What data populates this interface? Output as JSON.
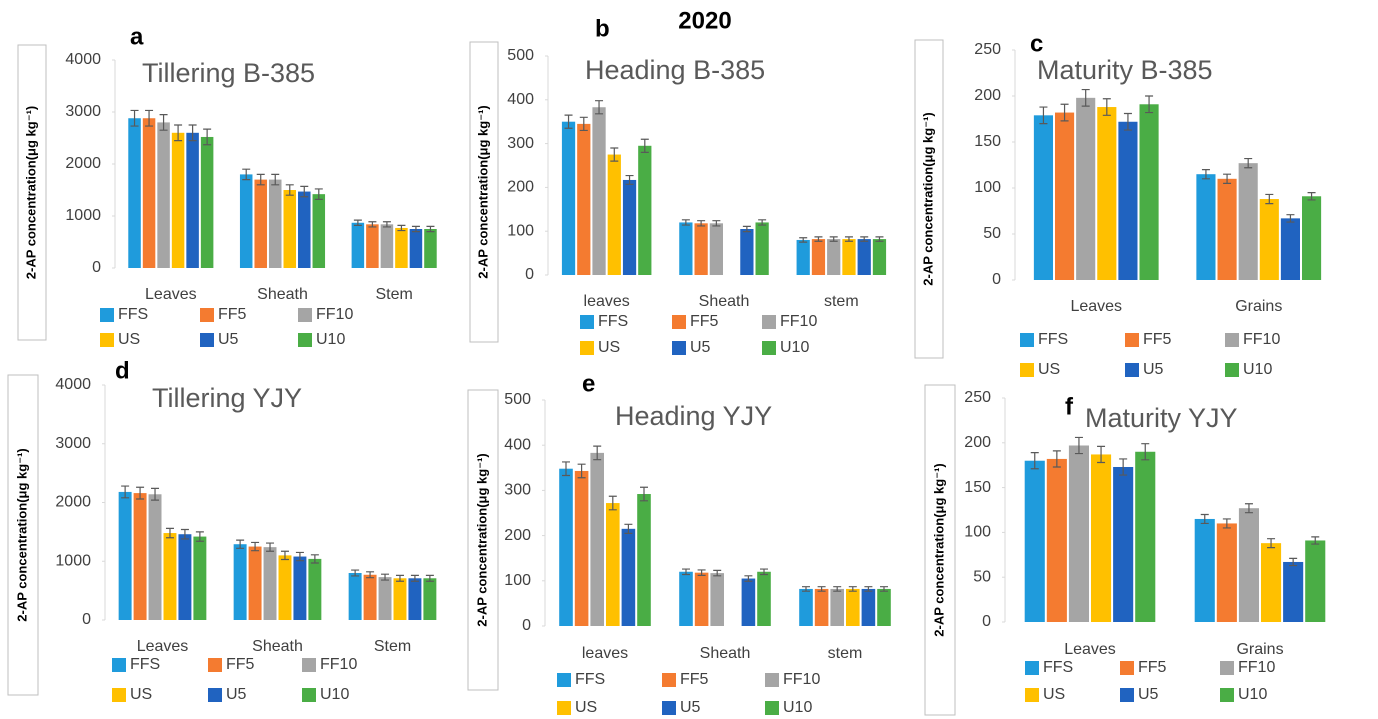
{
  "title": "2020",
  "chart_data": [
    {
      "type": "bar",
      "panel": "a",
      "title": "Tillering B-385",
      "ylabel": "2-AP concentration(μg kg⁻¹)",
      "categories": [
        "Leaves",
        "Sheath",
        "Stem"
      ],
      "ylim": [
        0,
        4000
      ],
      "yticks": [
        0,
        1000,
        2000,
        3000,
        4000
      ],
      "series": [
        {
          "name": "FFS",
          "color": "#1f9bdc",
          "values": [
            2880,
            1800,
            870
          ],
          "errors": [
            150,
            100,
            50
          ]
        },
        {
          "name": "FF5",
          "color": "#f47b30",
          "values": [
            2880,
            1700,
            840
          ],
          "errors": [
            150,
            100,
            50
          ]
        },
        {
          "name": "FF10",
          "color": "#a5a5a5",
          "values": [
            2800,
            1700,
            840
          ],
          "errors": [
            150,
            100,
            50
          ]
        },
        {
          "name": "US",
          "color": "#ffc000",
          "values": [
            2600,
            1500,
            770
          ],
          "errors": [
            150,
            100,
            50
          ]
        },
        {
          "name": "U5",
          "color": "#2063c0",
          "values": [
            2600,
            1470,
            750
          ],
          "errors": [
            150,
            100,
            50
          ]
        },
        {
          "name": "U10",
          "color": "#4aad45",
          "values": [
            2520,
            1420,
            750
          ],
          "errors": [
            150,
            100,
            50
          ]
        }
      ]
    },
    {
      "type": "bar",
      "panel": "b",
      "title": "Heading B-385",
      "ylabel": "2-AP concentration(μg kg⁻¹)",
      "categories": [
        "leaves",
        "Sheath",
        "stem"
      ],
      "ylim": [
        0,
        500
      ],
      "yticks": [
        0,
        100,
        200,
        300,
        400,
        500
      ],
      "series": [
        {
          "name": "FFS",
          "color": "#1f9bdc",
          "values": [
            350,
            120,
            80
          ],
          "errors": [
            15,
            6,
            5
          ]
        },
        {
          "name": "FF5",
          "color": "#f47b30",
          "values": [
            345,
            118,
            82
          ],
          "errors": [
            15,
            6,
            5
          ]
        },
        {
          "name": "FF10",
          "color": "#a5a5a5",
          "values": [
            383,
            118,
            82
          ],
          "errors": [
            15,
            6,
            5
          ]
        },
        {
          "name": "US",
          "color": "#ffc000",
          "values": [
            275,
            null,
            82
          ],
          "errors": [
            15,
            null,
            5
          ]
        },
        {
          "name": "U5",
          "color": "#2063c0",
          "values": [
            217,
            105,
            82
          ],
          "errors": [
            10,
            6,
            5
          ]
        },
        {
          "name": "U10",
          "color": "#4aad45",
          "values": [
            295,
            120,
            82
          ],
          "errors": [
            15,
            6,
            5
          ]
        }
      ]
    },
    {
      "type": "bar",
      "panel": "c",
      "title": "Maturity B-385",
      "ylabel": "2-AP concentration(μg kg⁻¹)",
      "categories": [
        "Leaves",
        "Grains"
      ],
      "ylim": [
        0,
        250
      ],
      "yticks": [
        0,
        50,
        100,
        150,
        200,
        250
      ],
      "series": [
        {
          "name": "FFS",
          "color": "#1f9bdc",
          "values": [
            179,
            115
          ],
          "errors": [
            9,
            5
          ]
        },
        {
          "name": "FF5",
          "color": "#f47b30",
          "values": [
            182,
            110
          ],
          "errors": [
            9,
            5
          ]
        },
        {
          "name": "FF10",
          "color": "#a5a5a5",
          "values": [
            198,
            127
          ],
          "errors": [
            9,
            5
          ]
        },
        {
          "name": "US",
          "color": "#ffc000",
          "values": [
            188,
            88
          ],
          "errors": [
            9,
            5
          ]
        },
        {
          "name": "U5",
          "color": "#2063c0",
          "values": [
            172,
            67
          ],
          "errors": [
            9,
            4
          ]
        },
        {
          "name": "U10",
          "color": "#4aad45",
          "values": [
            191,
            91
          ],
          "errors": [
            9,
            4
          ]
        }
      ]
    },
    {
      "type": "bar",
      "panel": "d",
      "title": "Tillering  YJY",
      "ylabel": "2-AP concentration(μg kg⁻¹)",
      "categories": [
        "Leaves",
        "Sheath",
        "Stem"
      ],
      "ylim": [
        0,
        4000
      ],
      "yticks": [
        0,
        1000,
        2000,
        3000,
        4000
      ],
      "series": [
        {
          "name": "FFS",
          "color": "#1f9bdc",
          "values": [
            2180,
            1290,
            800
          ],
          "errors": [
            100,
            70,
            50
          ]
        },
        {
          "name": "FF5",
          "color": "#f47b30",
          "values": [
            2160,
            1250,
            770
          ],
          "errors": [
            100,
            70,
            50
          ]
        },
        {
          "name": "FF10",
          "color": "#a5a5a5",
          "values": [
            2140,
            1240,
            730
          ],
          "errors": [
            100,
            70,
            50
          ]
        },
        {
          "name": "US",
          "color": "#ffc000",
          "values": [
            1480,
            1100,
            710
          ],
          "errors": [
            80,
            70,
            50
          ]
        },
        {
          "name": "U5",
          "color": "#2063c0",
          "values": [
            1460,
            1080,
            710
          ],
          "errors": [
            80,
            70,
            50
          ]
        },
        {
          "name": "U10",
          "color": "#4aad45",
          "values": [
            1420,
            1040,
            710
          ],
          "errors": [
            80,
            70,
            50
          ]
        }
      ]
    },
    {
      "type": "bar",
      "panel": "e",
      "title": "Heading YJY",
      "ylabel": "2-AP concentration(μg kg⁻¹)",
      "categories": [
        "leaves",
        "Sheath",
        "stem"
      ],
      "ylim": [
        0,
        500
      ],
      "yticks": [
        0,
        100,
        200,
        300,
        400,
        500
      ],
      "series": [
        {
          "name": "FFS",
          "color": "#1f9bdc",
          "values": [
            348,
            120,
            82
          ],
          "errors": [
            15,
            6,
            5
          ]
        },
        {
          "name": "FF5",
          "color": "#f47b30",
          "values": [
            343,
            118,
            82
          ],
          "errors": [
            15,
            6,
            5
          ]
        },
        {
          "name": "FF10",
          "color": "#a5a5a5",
          "values": [
            383,
            117,
            82
          ],
          "errors": [
            15,
            6,
            5
          ]
        },
        {
          "name": "US",
          "color": "#ffc000",
          "values": [
            272,
            null,
            82
          ],
          "errors": [
            15,
            null,
            5
          ]
        },
        {
          "name": "U5",
          "color": "#2063c0",
          "values": [
            215,
            105,
            82
          ],
          "errors": [
            10,
            6,
            5
          ]
        },
        {
          "name": "U10",
          "color": "#4aad45",
          "values": [
            292,
            120,
            82
          ],
          "errors": [
            15,
            6,
            5
          ]
        }
      ]
    },
    {
      "type": "bar",
      "panel": "f",
      "title": "Maturity YJY",
      "ylabel": "2-AP concentration(μg kg⁻¹)",
      "categories": [
        "Leaves",
        "Grains"
      ],
      "ylim": [
        0,
        250
      ],
      "yticks": [
        0,
        50,
        100,
        150,
        200,
        250
      ],
      "series": [
        {
          "name": "FFS",
          "color": "#1f9bdc",
          "values": [
            180,
            115
          ],
          "errors": [
            9,
            5
          ]
        },
        {
          "name": "FF5",
          "color": "#f47b30",
          "values": [
            182,
            110
          ],
          "errors": [
            9,
            5
          ]
        },
        {
          "name": "FF10",
          "color": "#a5a5a5",
          "values": [
            197,
            127
          ],
          "errors": [
            9,
            5
          ]
        },
        {
          "name": "US",
          "color": "#ffc000",
          "values": [
            187,
            88
          ],
          "errors": [
            9,
            5
          ]
        },
        {
          "name": "U5",
          "color": "#2063c0",
          "values": [
            173,
            67
          ],
          "errors": [
            9,
            4
          ]
        },
        {
          "name": "U10",
          "color": "#4aad45",
          "values": [
            190,
            91
          ],
          "errors": [
            9,
            4
          ]
        }
      ]
    }
  ]
}
